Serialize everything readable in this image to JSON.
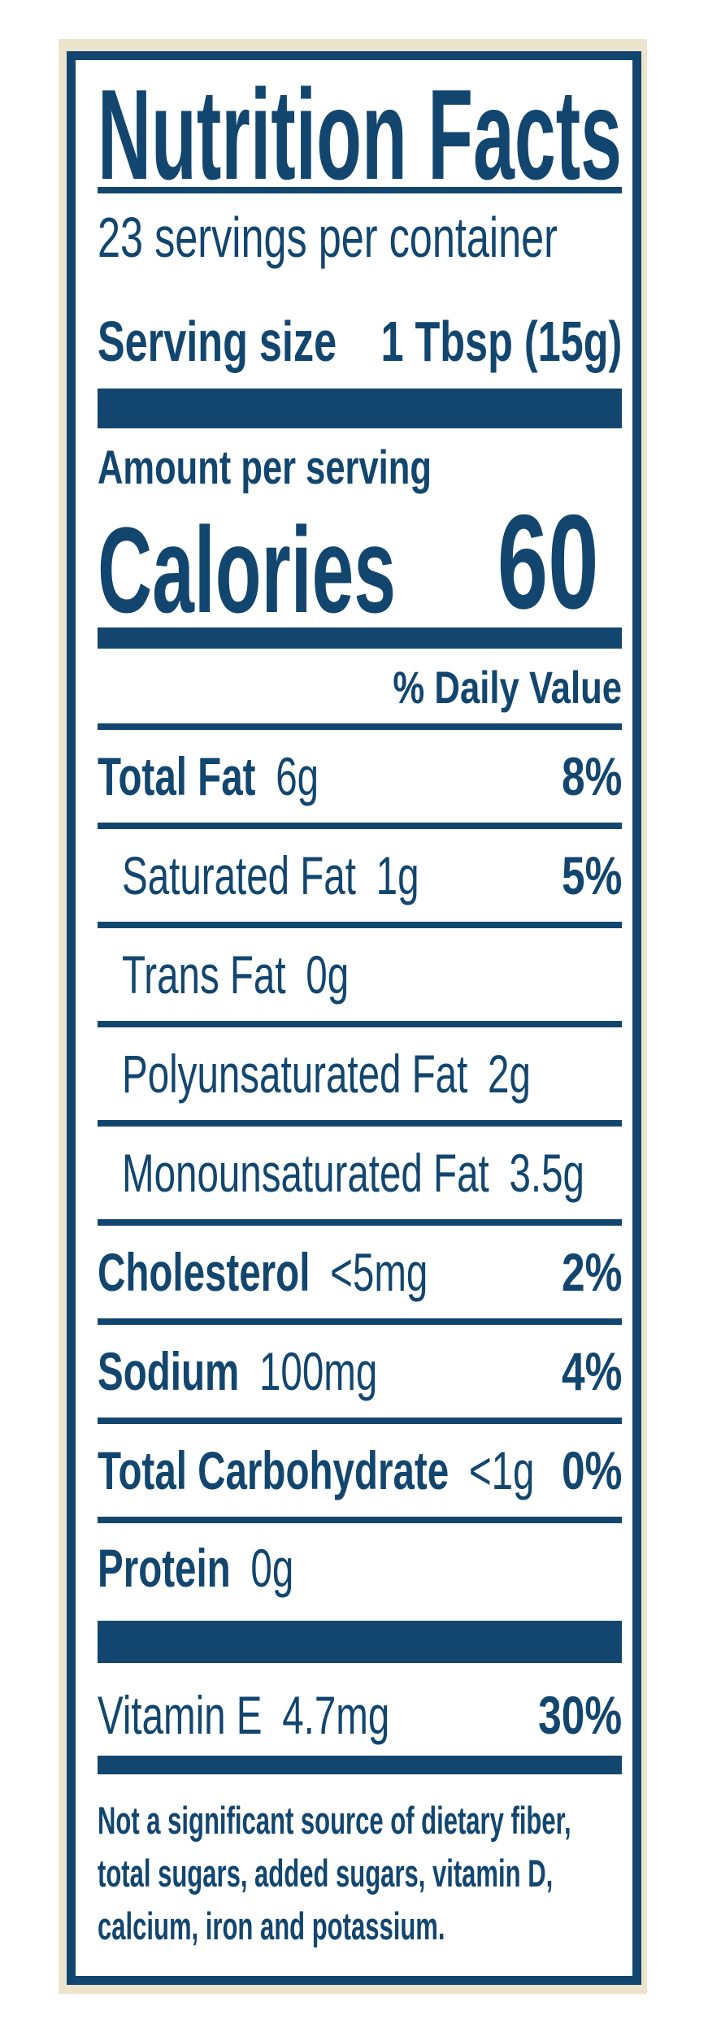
{
  "label": {
    "title": "Nutrition Facts",
    "servings_per_container": "23 servings per container",
    "serving_size": {
      "name": "Serving size",
      "value": "1 Tbsp (15g)"
    },
    "amount_per_serving": "Amount per serving",
    "calories": {
      "name": "Calories",
      "value": "60"
    },
    "daily_value_header": "% Daily Value",
    "nutrients": {
      "total_fat": {
        "name": "Total Fat",
        "amount": "6g",
        "dv": "8%"
      },
      "saturated_fat": {
        "name": "Saturated Fat",
        "amount": "1g",
        "dv": "5%"
      },
      "trans_fat": {
        "name": "Trans Fat",
        "amount": "0g"
      },
      "polyunsaturated_fat": {
        "name": "Polyunsaturated Fat",
        "amount": "2g"
      },
      "monounsaturated_fat": {
        "name": "Monounsaturated Fat",
        "amount": "3.5g"
      },
      "cholesterol": {
        "name": "Cholesterol",
        "amount": "<5mg",
        "dv": "2%"
      },
      "sodium": {
        "name": "Sodium",
        "amount": "100mg",
        "dv": "4%"
      },
      "total_carbohydrate": {
        "name": "Total Carbohydrate",
        "amount": "<1g",
        "dv": "0%"
      },
      "protein": {
        "name": "Protein",
        "amount": "0g"
      },
      "vitamin_e": {
        "name": "Vitamin E",
        "amount": "4.7mg",
        "dv": "30%"
      }
    },
    "footnote": {
      "lines": [
        "Not a significant source of dietary fiber,",
        "total sugars, added sugars, vitamin D,",
        "calcium, iron and potassium."
      ]
    },
    "colors": {
      "navy": "#12466F",
      "cream": "#EDE4CE",
      "background": "#FFFFFF"
    }
  }
}
